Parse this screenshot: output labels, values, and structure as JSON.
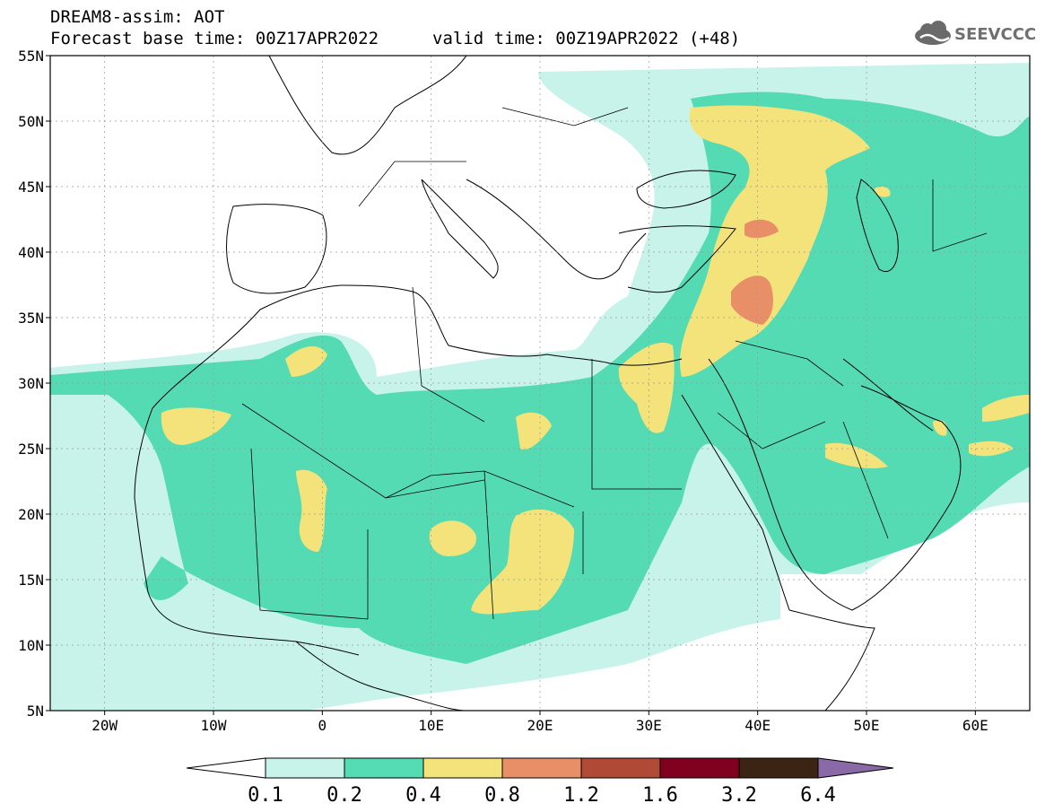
{
  "header": {
    "model_line": "DREAM8-assim: AOT",
    "base_time": "Forecast base time: 00Z17APR2022",
    "valid_time": "valid time: 00Z19APR2022 (+48)"
  },
  "logo": {
    "text": "SEEVCCC",
    "icon": "cloud-icon"
  },
  "map": {
    "lat_labels": [
      "55N",
      "50N",
      "45N",
      "40N",
      "35N",
      "30N",
      "25N",
      "20N",
      "15N",
      "10N",
      "5N"
    ],
    "lon_labels": [
      "20W",
      "10W",
      "0",
      "10E",
      "20E",
      "30E",
      "40E",
      "50E",
      "60E"
    ],
    "lon_range": [
      -25,
      65
    ],
    "lat_range": [
      5,
      55
    ]
  },
  "colorbar": {
    "levels": [
      "0.1",
      "0.2",
      "0.4",
      "0.8",
      "1.2",
      "1.6",
      "3.2",
      "6.4"
    ],
    "colors": [
      "#c8f3ea",
      "#55dbb4",
      "#f3e37a",
      "#e88f68",
      "#b04a36",
      "#800020",
      "#3c2414"
    ],
    "over_color": "#8a6aa6",
    "under_color": "#ffffff"
  },
  "colors": {
    "aot_01_02": "#c8f3ea",
    "aot_02_04": "#55dbb4",
    "aot_04_08": "#f3e37a",
    "aot_08_12": "#e88f68"
  }
}
